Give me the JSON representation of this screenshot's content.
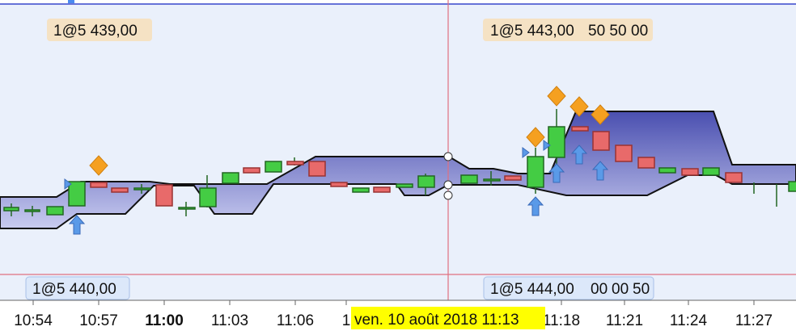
{
  "top_labels": [
    "1@5 439,00",
    "1@5 443,00",
    "50 50",
    "00"
  ],
  "bottom_labels": [
    "1@5 440,00",
    "1@5 444,00",
    "00",
    "00",
    "50"
  ],
  "time_axis": {
    "ticks": [
      "10:54",
      "10:57",
      "11:00",
      "11:03",
      "11:06",
      "1",
      "11:18",
      "11:21",
      "11:24",
      "11:27"
    ],
    "cursor_label": "ven. 10 août 2018 11:13"
  }
}
